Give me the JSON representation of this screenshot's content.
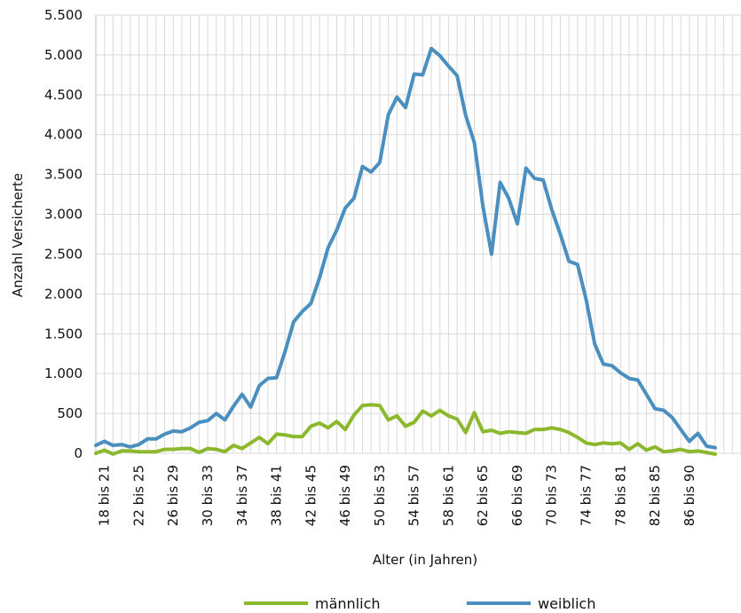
{
  "chart_data": {
    "type": "line",
    "xlabel": "Alter (in Jahren)",
    "ylabel": "Anzahl Versicherte",
    "ylim": [
      0,
      5500
    ],
    "yticks": [
      0,
      500,
      1000,
      1500,
      2000,
      2500,
      3000,
      3500,
      4000,
      4500,
      5000,
      5500
    ],
    "ytick_labels": [
      "0",
      "500",
      "1.000",
      "1.500",
      "2.000",
      "2.500",
      "3.000",
      "3.500",
      "4.000",
      "4.500",
      "5.000",
      "5.500"
    ],
    "grid": true,
    "legend_position": "bottom",
    "x_start_age": 18,
    "x_end_age": 93,
    "tick_labels": [
      "18 bis 21",
      "22 bis 25",
      "26 bis 29",
      "30 bis 33",
      "34 bis 37",
      "38 bis 41",
      "42 bis 45",
      "46 bis 49",
      "50 bis 53",
      "54 bis 57",
      "58 bis 61",
      "62 bis 65",
      "66 bis 69",
      "70 bis 73",
      "74 bis 77",
      "78 bis 81",
      "82 bis 85",
      "86 bis 90"
    ],
    "tick_ages": [
      19,
      23,
      27,
      31,
      35,
      39,
      43,
      47,
      51,
      55,
      59,
      63,
      67,
      71,
      75,
      79,
      83,
      87
    ],
    "series": [
      {
        "name": "männlich",
        "color": "#8cb82d",
        "values": [
          0,
          40,
          -10,
          30,
          30,
          20,
          20,
          20,
          50,
          50,
          60,
          60,
          10,
          60,
          50,
          20,
          100,
          60,
          130,
          200,
          120,
          240,
          230,
          210,
          210,
          340,
          380,
          320,
          400,
          300,
          480,
          600,
          610,
          600,
          420,
          470,
          340,
          390,
          530,
          470,
          540,
          470,
          430,
          260,
          510,
          270,
          290,
          250,
          270,
          260,
          250,
          300,
          300,
          320,
          300,
          260,
          200,
          130,
          110,
          130,
          120,
          130,
          50,
          120,
          40,
          80,
          20,
          30,
          50,
          20,
          30,
          10,
          -10
        ]
      },
      {
        "name": "weiblich",
        "color": "#4a8fbf",
        "values": [
          100,
          150,
          100,
          110,
          80,
          110,
          180,
          180,
          240,
          280,
          270,
          320,
          390,
          410,
          500,
          420,
          590,
          740,
          580,
          850,
          940,
          950,
          1280,
          1650,
          1780,
          1880,
          2200,
          2580,
          2800,
          3080,
          3200,
          3600,
          3530,
          3650,
          4250,
          4470,
          4340,
          4760,
          4750,
          5080,
          4990,
          4860,
          4740,
          4240,
          3900,
          3100,
          2500,
          3400,
          3200,
          2880,
          3580,
          3450,
          3430,
          3060,
          2750,
          2410,
          2370,
          1930,
          1370,
          1120,
          1100,
          1010,
          940,
          920,
          740,
          560,
          540,
          450,
          300,
          150,
          250,
          90,
          70
        ]
      }
    ]
  }
}
